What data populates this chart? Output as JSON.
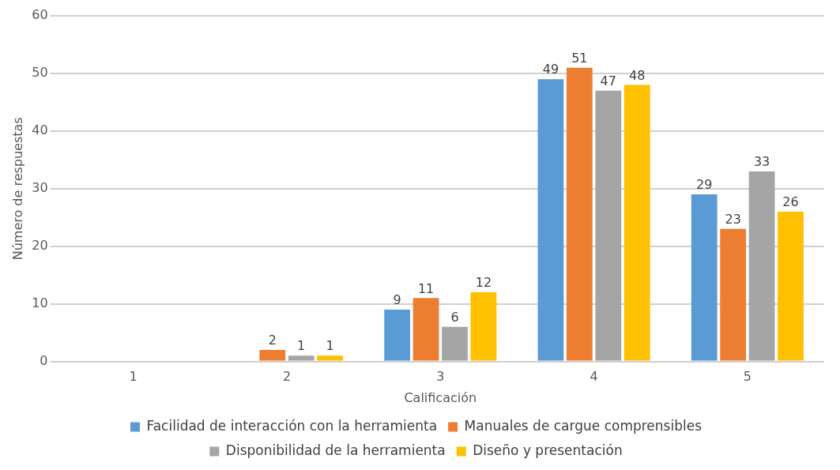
{
  "chart_data": {
    "type": "bar",
    "xlabel": "Calificación",
    "ylabel": "Número de respuestas",
    "categories": [
      "1",
      "2",
      "3",
      "4",
      "5"
    ],
    "series": [
      {
        "name": "Facilidad de interacción con la herramienta",
        "color": "#5b9bd5",
        "values": [
          0,
          0,
          9,
          49,
          29
        ],
        "value_labels": [
          null,
          null,
          "9",
          "49",
          "29"
        ]
      },
      {
        "name": "Manuales de cargue comprensibles",
        "color": "#ed7d31",
        "values": [
          0,
          2,
          11,
          51,
          23
        ],
        "value_labels": [
          null,
          "2",
          "11",
          "51",
          "23"
        ]
      },
      {
        "name": "Disponibilidad de la herramienta",
        "color": "#a5a5a5",
        "values": [
          0,
          1,
          6,
          47,
          33
        ],
        "value_labels": [
          null,
          "1",
          "6",
          "47",
          "33"
        ]
      },
      {
        "name": "Diseño y presentación",
        "color": "#ffc000",
        "values": [
          0,
          1,
          12,
          48,
          26
        ],
        "value_labels": [
          null,
          "1",
          "12",
          "48",
          "26"
        ]
      }
    ],
    "ylim": [
      0,
      60
    ],
    "yticks": [
      0,
      10,
      20,
      30,
      40,
      50,
      60
    ],
    "grid": "y",
    "legend": "bottom"
  }
}
